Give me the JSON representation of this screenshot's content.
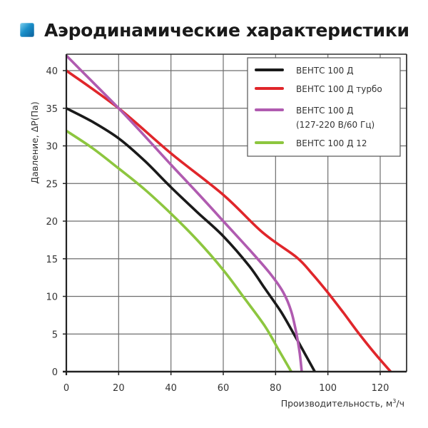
{
  "header": {
    "title": "Аэродинамические характеристики",
    "icon": "blue-square-icon",
    "icon_color": "#1a8fc9"
  },
  "chart_data": {
    "type": "line",
    "title": "Аэродинамические характеристики",
    "xlabel": "Производительность, м³/ч",
    "ylabel": "Давление, ΔP(Па)",
    "xlim": [
      0,
      130
    ],
    "ylim": [
      0,
      42
    ],
    "xticks": [
      0,
      20,
      40,
      60,
      80,
      100,
      120
    ],
    "yticks": [
      0,
      5,
      10,
      15,
      20,
      25,
      30,
      35,
      40
    ],
    "grid": true,
    "legend_position": "upper right",
    "series": [
      {
        "name": "ВЕНТС 100 Д",
        "color": "#1a1a1a",
        "points": [
          [
            0,
            35
          ],
          [
            10,
            33.2
          ],
          [
            20,
            31
          ],
          [
            30,
            28
          ],
          [
            40,
            24.5
          ],
          [
            50,
            21.2
          ],
          [
            60,
            18
          ],
          [
            70,
            14
          ],
          [
            76,
            11
          ],
          [
            82,
            8
          ],
          [
            87,
            5
          ],
          [
            91,
            2.5
          ],
          [
            95,
            0
          ]
        ]
      },
      {
        "name": "ВЕНТС 100 Д турбо",
        "color": "#e0262b",
        "points": [
          [
            0,
            40
          ],
          [
            20,
            35
          ],
          [
            40,
            29
          ],
          [
            60,
            23.5
          ],
          [
            75,
            18.5
          ],
          [
            88,
            15.2
          ],
          [
            94,
            13
          ],
          [
            100,
            10.5
          ],
          [
            106,
            7.8
          ],
          [
            112,
            5
          ],
          [
            118,
            2.4
          ],
          [
            124,
            0
          ]
        ]
      },
      {
        "name": "ВЕНТС 100 Д (127-220 В/60 Гц)",
        "color": "#b05bb0",
        "points": [
          [
            0,
            42
          ],
          [
            10,
            38.5
          ],
          [
            20,
            35
          ],
          [
            30,
            31.3
          ],
          [
            40,
            27.5
          ],
          [
            50,
            23.8
          ],
          [
            60,
            20
          ],
          [
            70,
            16.2
          ],
          [
            78,
            13
          ],
          [
            83,
            10.5
          ],
          [
            86,
            8
          ],
          [
            88,
            5
          ],
          [
            89.2,
            2.5
          ],
          [
            90,
            0
          ]
        ]
      },
      {
        "name": "ВЕНТС 100 Д 12",
        "color": "#8dc63f",
        "points": [
          [
            0,
            32
          ],
          [
            10,
            29.7
          ],
          [
            20,
            27
          ],
          [
            30,
            24.2
          ],
          [
            40,
            21
          ],
          [
            50,
            17.5
          ],
          [
            60,
            13.5
          ],
          [
            68,
            9.8
          ],
          [
            76,
            6
          ],
          [
            81,
            3
          ],
          [
            86,
            0
          ]
        ]
      }
    ]
  },
  "legend": {
    "items": [
      {
        "label_lines": [
          "ВЕНТС 100 Д"
        ],
        "color": "#1a1a1a"
      },
      {
        "label_lines": [
          "ВЕНТС 100 Д турбо"
        ],
        "color": "#e0262b"
      },
      {
        "label_lines": [
          "ВЕНТС 100 Д",
          "(127-220 В/60 Гц)"
        ],
        "color": "#b05bb0"
      },
      {
        "label_lines": [
          "ВЕНТС 100 Д 12"
        ],
        "color": "#8dc63f"
      }
    ]
  },
  "axes": {
    "x_label_main": "Производительность, м",
    "x_label_sup": "3",
    "x_label_tail": "/ч",
    "y_label": "Давление, ΔP(Па)"
  }
}
